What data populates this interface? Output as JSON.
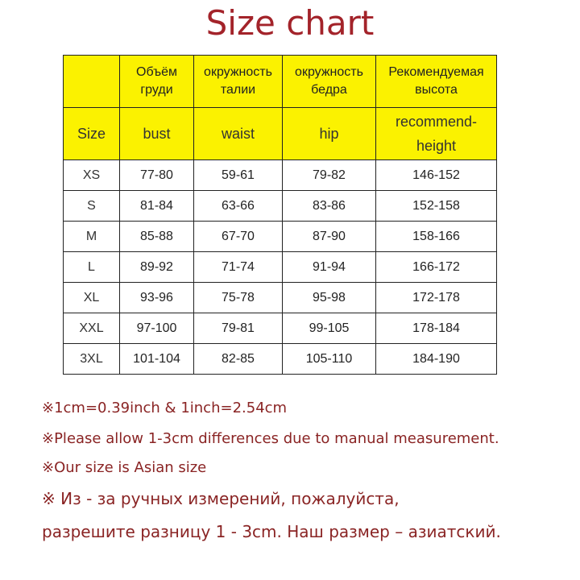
{
  "title": "Size chart",
  "table": {
    "header_ru": [
      "",
      "Объём груди",
      "окружность талии",
      "окружность бедра",
      "Рекомендуемая высота"
    ],
    "header_en": [
      "Size",
      "bust",
      "waist",
      "hip",
      "recommend-height"
    ],
    "rows": [
      [
        "XS",
        "77-80",
        "59-61",
        "79-82",
        "146-152"
      ],
      [
        "S",
        "81-84",
        "63-66",
        "83-86",
        "152-158"
      ],
      [
        "M",
        "85-88",
        "67-70",
        "87-90",
        "158-166"
      ],
      [
        "L",
        "89-92",
        "71-74",
        "91-94",
        "166-172"
      ],
      [
        "XL",
        "93-96",
        "75-78",
        "95-98",
        "172-178"
      ],
      [
        "XXL",
        "97-100",
        "79-81",
        "99-105",
        "178-184"
      ],
      [
        "3XL",
        "101-104",
        "82-85",
        "105-110",
        "184-190"
      ]
    ]
  },
  "notes": [
    "※1cm=0.39inch & 1inch=2.54cm",
    "※Please allow 1-3cm differences due to manual measurement.",
    "※Our size is Asian size",
    "※ Из - за ручных измерений, пожалуйста,",
    "разрешите разницу 1 - 3cm. Наш размер – азиатский."
  ],
  "colors": {
    "header_bg": "#fbf200",
    "title": "#a3232a",
    "notes": "#8a2424"
  }
}
